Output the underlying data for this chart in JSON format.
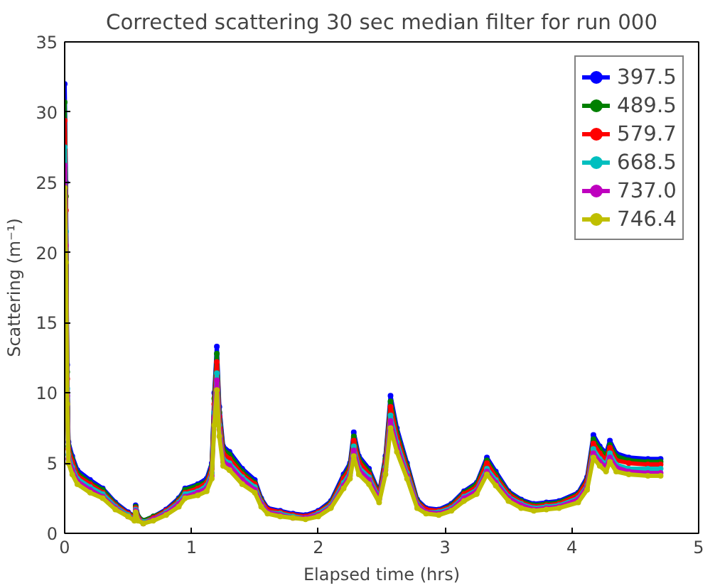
{
  "chart_data": {
    "type": "line",
    "title": "Corrected scattering 30 sec median filter for run 000",
    "xlabel": "Elapsed time (hrs)",
    "ylabel": "Scattering (m⁻¹)",
    "x": [
      0,
      0.01,
      0.02,
      0.03,
      0.06,
      0.1,
      0.2,
      0.3,
      0.4,
      0.5,
      0.55,
      0.56,
      0.58,
      0.62,
      0.7,
      0.8,
      0.9,
      0.95,
      1.05,
      1.12,
      1.16,
      1.18,
      1.2,
      1.22,
      1.25,
      1.3,
      1.4,
      1.5,
      1.55,
      1.6,
      1.7,
      1.8,
      1.9,
      2.0,
      2.1,
      2.2,
      2.25,
      2.28,
      2.32,
      2.4,
      2.48,
      2.53,
      2.57,
      2.62,
      2.7,
      2.78,
      2.85,
      2.95,
      3.05,
      3.15,
      3.25,
      3.33,
      3.4,
      3.5,
      3.6,
      3.7,
      3.8,
      3.9,
      4.05,
      4.12,
      4.17,
      4.22,
      4.27,
      4.3,
      4.35,
      4.45,
      4.6,
      4.7
    ],
    "series": [
      {
        "name": "397.5",
        "color": "#0000ff",
        "values": [
          32,
          25,
          12,
          6.5,
          5.5,
          4.5,
          3.8,
          3.2,
          2.2,
          1.5,
          1.2,
          2.0,
          1.2,
          0.9,
          1.2,
          1.7,
          2.5,
          3.2,
          3.5,
          3.9,
          5.0,
          10,
          13.3,
          9,
          6.2,
          5.8,
          4.6,
          3.8,
          2.5,
          1.8,
          1.6,
          1.4,
          1.3,
          1.6,
          2.3,
          4.2,
          5.0,
          7.2,
          5.5,
          4.6,
          2.9,
          5.5,
          9.8,
          7.5,
          5.0,
          2.4,
          1.8,
          1.7,
          2.1,
          3.0,
          3.6,
          5.4,
          4.4,
          3.0,
          2.4,
          2.1,
          2.2,
          2.3,
          2.9,
          4.0,
          7.0,
          6.2,
          5.7,
          6.6,
          5.7,
          5.4,
          5.3,
          5.3
        ]
      },
      {
        "name": "489.5",
        "color": "#008000",
        "values": [
          30.7,
          24,
          11.5,
          6.2,
          5.3,
          4.3,
          3.6,
          3.1,
          2.1,
          1.4,
          1.2,
          1.9,
          1.2,
          0.9,
          1.2,
          1.6,
          2.4,
          3.1,
          3.4,
          3.7,
          4.8,
          9.6,
          12.8,
          8.6,
          6.0,
          5.6,
          4.4,
          3.6,
          2.4,
          1.7,
          1.5,
          1.3,
          1.2,
          1.5,
          2.2,
          4.0,
          4.8,
          6.9,
          5.3,
          4.4,
          2.8,
          5.3,
          9.4,
          7.2,
          4.8,
          2.3,
          1.7,
          1.6,
          2.0,
          2.9,
          3.5,
          5.2,
          4.2,
          2.9,
          2.3,
          2.0,
          2.1,
          2.2,
          2.8,
          3.8,
          6.7,
          6.0,
          5.5,
          6.3,
          5.5,
          5.2,
          5.1,
          5.1
        ]
      },
      {
        "name": "579.7",
        "color": "#ff0000",
        "values": [
          29.4,
          23,
          11,
          6.0,
          5.1,
          4.1,
          3.5,
          2.9,
          2.0,
          1.4,
          1.1,
          1.8,
          1.1,
          0.8,
          1.1,
          1.6,
          2.3,
          2.9,
          3.2,
          3.6,
          4.6,
          9.2,
          12.2,
          8.3,
          5.7,
          5.3,
          4.2,
          3.5,
          2.3,
          1.7,
          1.5,
          1.3,
          1.2,
          1.5,
          2.1,
          3.9,
          4.6,
          6.6,
          5.1,
          4.2,
          2.7,
          5.1,
          9.0,
          6.9,
          4.6,
          2.2,
          1.7,
          1.6,
          1.9,
          2.8,
          3.3,
          5.0,
          4.0,
          2.8,
          2.2,
          1.9,
          2.0,
          2.1,
          2.7,
          3.7,
          6.4,
          5.7,
          5.2,
          6.1,
          5.2,
          5.0,
          4.9,
          4.9
        ]
      },
      {
        "name": "668.5",
        "color": "#00bfbf",
        "values": [
          27.5,
          21.5,
          10.3,
          5.6,
          4.7,
          3.9,
          3.3,
          2.8,
          1.9,
          1.3,
          1.0,
          1.7,
          1.0,
          0.8,
          1.0,
          1.5,
          2.2,
          2.8,
          3.0,
          3.4,
          4.3,
          8.6,
          11.4,
          7.7,
          5.3,
          5.0,
          4.0,
          3.3,
          2.2,
          1.5,
          1.4,
          1.2,
          1.1,
          1.4,
          2.0,
          3.6,
          4.3,
          6.2,
          4.7,
          4.0,
          2.5,
          4.7,
          8.4,
          6.5,
          4.3,
          2.1,
          1.5,
          1.5,
          1.8,
          2.6,
          3.1,
          4.6,
          3.8,
          2.6,
          2.1,
          1.8,
          1.9,
          2.0,
          2.5,
          3.4,
          6.0,
          5.3,
          4.9,
          5.7,
          4.9,
          4.6,
          4.6,
          4.6
        ]
      },
      {
        "name": "737.0",
        "color": "#bf00bf",
        "values": [
          26.2,
          20.5,
          9.8,
          5.3,
          4.5,
          3.7,
          3.1,
          2.6,
          1.8,
          1.2,
          1.0,
          1.6,
          1.0,
          0.7,
          1.0,
          1.4,
          2.1,
          2.6,
          2.9,
          3.2,
          4.1,
          8.2,
          10.9,
          7.4,
          5.1,
          4.8,
          3.8,
          3.1,
          2.1,
          1.5,
          1.3,
          1.1,
          1.1,
          1.3,
          1.9,
          3.4,
          4.1,
          5.9,
          4.5,
          3.8,
          2.4,
          4.5,
          8.0,
          6.2,
          4.1,
          2.0,
          1.5,
          1.4,
          1.7,
          2.5,
          3.0,
          4.4,
          3.6,
          2.5,
          2.0,
          1.7,
          1.8,
          1.9,
          2.4,
          3.3,
          5.7,
          5.1,
          4.7,
          5.4,
          4.7,
          4.4,
          4.3,
          4.3
        ]
      },
      {
        "name": "746.4",
        "color": "#bfbf00",
        "values": [
          24.6,
          19.3,
          9.2,
          5.0,
          4.2,
          3.5,
          2.9,
          2.5,
          1.7,
          1.2,
          0.9,
          1.5,
          0.9,
          0.7,
          0.9,
          1.3,
          1.9,
          2.5,
          2.7,
          3.0,
          3.9,
          7.7,
          10.2,
          6.9,
          4.8,
          4.5,
          3.5,
          2.9,
          1.9,
          1.4,
          1.2,
          1.1,
          1.0,
          1.2,
          1.8,
          3.2,
          3.9,
          5.5,
          4.2,
          3.5,
          2.2,
          4.2,
          7.5,
          5.8,
          3.9,
          1.8,
          1.4,
          1.3,
          1.6,
          2.3,
          2.8,
          4.2,
          3.4,
          2.3,
          1.8,
          1.6,
          1.7,
          1.8,
          2.2,
          3.1,
          5.4,
          4.8,
          4.4,
          5.1,
          4.4,
          4.2,
          4.1,
          4.1
        ]
      }
    ],
    "xlim": [
      0,
      5
    ],
    "ylim": [
      0,
      35
    ],
    "xticks": [
      0,
      1,
      2,
      3,
      4,
      5
    ],
    "yticks": [
      0,
      5,
      10,
      15,
      20,
      25,
      30,
      35
    ],
    "grid": false,
    "legend": "top right",
    "marker": "circle"
  }
}
